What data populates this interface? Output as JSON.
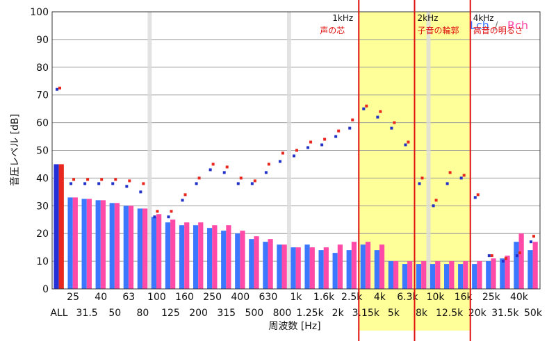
{
  "chart_data": {
    "type": "bar",
    "title": "",
    "ylabel": "音圧レベル [dB]",
    "xlabel": "周波数 [Hz]",
    "ylim": [
      0,
      100
    ],
    "yticks": [
      0,
      10,
      20,
      30,
      40,
      50,
      60,
      70,
      80,
      90,
      100
    ],
    "x_top_labels": [
      "25",
      "40",
      "63",
      "100",
      "160",
      "250",
      "400",
      "630",
      "1k",
      "1.6k",
      "2.5k",
      "4k",
      "6.3k",
      "10k",
      "16k",
      "25k",
      "40k"
    ],
    "x_bottom_labels": [
      "ALL",
      "31.5",
      "50",
      "80",
      "125",
      "200",
      "315",
      "500",
      "800",
      "1.25k",
      "2k",
      "3.15k",
      "5k",
      "8k",
      "12.5k",
      "20k",
      "31.5k",
      "50k"
    ],
    "legend": {
      "left": "Lch",
      "sep": "/",
      "right": "Rch"
    },
    "colors": {
      "lch": "#3c78ff",
      "rch": "#ff4aa8",
      "dot_l": "#2232c8",
      "dot_r": "#e8281e",
      "band_fill": "#ffff99",
      "band_line": "#e01010",
      "header_red": "#e01010"
    },
    "bands": [
      {
        "freq_label": "1kHz",
        "desc": "声の芯",
        "from_idx": 22,
        "to_idx": 26
      },
      {
        "freq_label": "2kHz",
        "desc": "子音の輪郭",
        "from_idx": 26,
        "to_idx": 30
      },
      {
        "freq_label": "4kHz",
        "desc": "高音の明るさ",
        "from_idx": 30,
        "to_idx": 30
      }
    ],
    "categories": [
      "ALL",
      "25",
      "31.5",
      "40",
      "50",
      "63",
      "80",
      "100",
      "125",
      "160",
      "200",
      "250",
      "315",
      "400",
      "500",
      "630",
      "800",
      "1k",
      "1.25k",
      "1.6k",
      "2k",
      "2.5k",
      "3.15k",
      "4k",
      "5k",
      "6.3k",
      "8k",
      "10k",
      "12.5k",
      "16k",
      "20k",
      "25k",
      "31.5k",
      "40k",
      "50k"
    ],
    "series": [
      {
        "name": "Lch",
        "values": [
          45,
          33,
          32.5,
          32,
          31,
          30,
          29,
          26,
          24,
          23,
          23,
          22,
          21,
          20,
          18,
          17,
          16,
          15,
          16,
          14,
          13,
          14,
          16,
          14,
          10,
          9,
          9,
          9,
          9,
          9,
          9,
          10,
          11,
          17,
          14
        ]
      },
      {
        "name": "Rch",
        "values": [
          45,
          33,
          32.5,
          32,
          31,
          30,
          29,
          27,
          25,
          24,
          24,
          23,
          23,
          21,
          19,
          18,
          16,
          15,
          15,
          15,
          16,
          17,
          17,
          16,
          10,
          10,
          10,
          10,
          10,
          10,
          10,
          11,
          12,
          20,
          17
        ]
      }
    ],
    "dot_series": [
      {
        "name": "Lch",
        "points": [
          [
            0,
            72
          ],
          [
            1,
            38
          ],
          [
            2,
            38
          ],
          [
            3,
            38
          ],
          [
            4,
            38
          ],
          [
            5,
            37
          ],
          [
            6,
            35
          ],
          [
            7,
            26
          ],
          [
            8,
            26
          ],
          [
            9,
            32
          ],
          [
            10,
            38
          ],
          [
            11,
            43
          ],
          [
            12,
            42
          ],
          [
            13,
            38
          ],
          [
            14,
            38
          ],
          [
            15,
            42
          ],
          [
            16,
            46
          ],
          [
            17,
            48
          ],
          [
            18,
            51
          ],
          [
            19,
            52
          ],
          [
            20,
            55
          ],
          [
            21,
            58
          ],
          [
            22,
            65
          ],
          [
            23,
            62
          ],
          [
            24,
            58
          ],
          [
            25,
            52
          ],
          [
            26,
            38
          ],
          [
            27,
            30
          ],
          [
            28,
            38
          ],
          [
            29,
            40
          ],
          [
            30,
            33
          ],
          [
            31,
            12
          ],
          [
            32,
            10
          ],
          [
            33,
            12
          ],
          [
            34,
            17
          ]
        ]
      },
      {
        "name": "Rch",
        "points": [
          [
            0,
            72.5
          ],
          [
            1,
            39.5
          ],
          [
            2,
            39.5
          ],
          [
            3,
            39.5
          ],
          [
            4,
            39.5
          ],
          [
            5,
            39
          ],
          [
            6,
            38
          ],
          [
            7,
            28
          ],
          [
            8,
            28
          ],
          [
            9,
            34
          ],
          [
            10,
            40
          ],
          [
            11,
            45
          ],
          [
            12,
            44
          ],
          [
            13,
            40
          ],
          [
            14,
            39
          ],
          [
            15,
            45
          ],
          [
            16,
            49
          ],
          [
            17,
            50
          ],
          [
            18,
            53
          ],
          [
            19,
            54
          ],
          [
            20,
            57
          ],
          [
            21,
            61
          ],
          [
            22,
            66
          ],
          [
            23,
            64
          ],
          [
            24,
            60
          ],
          [
            25,
            53
          ],
          [
            26,
            40
          ],
          [
            27,
            32
          ],
          [
            28,
            42
          ],
          [
            29,
            41
          ],
          [
            30,
            34
          ],
          [
            31,
            12
          ],
          [
            32,
            11
          ],
          [
            33,
            13
          ],
          [
            34,
            19
          ]
        ]
      }
    ]
  }
}
